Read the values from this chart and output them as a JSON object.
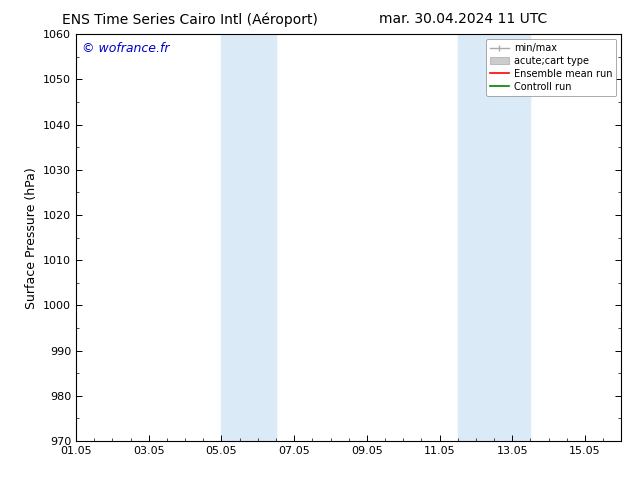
{
  "title_left": "ENS Time Series Cairo Intl (Aéroport)",
  "title_right": "mar. 30.04.2024 11 UTC",
  "ylabel": "Surface Pressure (hPa)",
  "ylim": [
    970,
    1060
  ],
  "yticks": [
    970,
    980,
    990,
    1000,
    1010,
    1020,
    1030,
    1040,
    1050,
    1060
  ],
  "xtick_labels": [
    "01.05",
    "03.05",
    "05.05",
    "07.05",
    "09.05",
    "11.05",
    "13.05",
    "15.05"
  ],
  "xtick_positions": [
    0,
    2,
    4,
    6,
    8,
    10,
    12,
    14
  ],
  "xlim": [
    0,
    15
  ],
  "shaded_bands": [
    {
      "x_start": 4.0,
      "x_end": 5.5
    },
    {
      "x_start": 10.5,
      "x_end": 12.5
    }
  ],
  "shaded_color": "#daeaf7",
  "copyright_text": "© wofrance.fr",
  "copyright_color": "#0000cc",
  "bg_color": "#ffffff",
  "spine_color": "#000000",
  "title_fontsize": 10,
  "ylabel_fontsize": 9,
  "tick_fontsize": 8,
  "copyright_fontsize": 9
}
